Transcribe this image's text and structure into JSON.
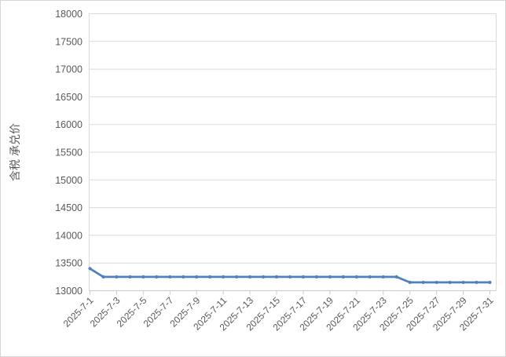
{
  "window": {
    "background_color": "#ffffff",
    "border_color": "#d5d5d5"
  },
  "chart_data": {
    "type": "line",
    "title": "",
    "xlabel": "",
    "ylabel": "含税 承兑价",
    "x": [
      "2025-7-1",
      "2025-7-2",
      "2025-7-3",
      "2025-7-4",
      "2025-7-5",
      "2025-7-6",
      "2025-7-7",
      "2025-7-8",
      "2025-7-9",
      "2025-7-10",
      "2025-7-11",
      "2025-7-12",
      "2025-7-13",
      "2025-7-14",
      "2025-7-15",
      "2025-7-16",
      "2025-7-17",
      "2025-7-18",
      "2025-7-19",
      "2025-7-20",
      "2025-7-21",
      "2025-7-22",
      "2025-7-23",
      "2025-7-24",
      "2025-7-25",
      "2025-7-26",
      "2025-7-27",
      "2025-7-28",
      "2025-7-29",
      "2025-7-30",
      "2025-7-31"
    ],
    "series": [
      {
        "name": "含税 承兑价",
        "color": "#4f81bd",
        "marker": "circle",
        "values": [
          13400,
          13250,
          13250,
          13250,
          13250,
          13250,
          13250,
          13250,
          13250,
          13250,
          13250,
          13250,
          13250,
          13250,
          13250,
          13250,
          13250,
          13250,
          13250,
          13250,
          13250,
          13250,
          13250,
          13250,
          13150,
          13150,
          13150,
          13150,
          13150,
          13150,
          13150
        ]
      }
    ],
    "ylim": [
      13000,
      18000
    ],
    "yticks": [
      13000,
      13500,
      14000,
      14500,
      15000,
      15500,
      16000,
      16500,
      17000,
      17500,
      18000
    ],
    "xtick_labels": [
      "2025-7-1",
      "2025-7-3",
      "2025-7-5",
      "2025-7-7",
      "2025-7-9",
      "2025-7-11",
      "2025-7-13",
      "2025-7-15",
      "2025-7-17",
      "2025-7-19",
      "2025-7-21",
      "2025-7-23",
      "2025-7-25",
      "2025-7-27",
      "2025-7-29",
      "2025-7-31"
    ],
    "xtick_label_rotation_deg": -45,
    "grid": "horizontal-major",
    "legend_position": "none",
    "colors": {
      "gridline": "#d9d9d9",
      "axis_line": "#c9c9c9",
      "tick_mark": "#c9c9c9",
      "tick_label": "#595959",
      "axis_title": "#595959"
    }
  }
}
